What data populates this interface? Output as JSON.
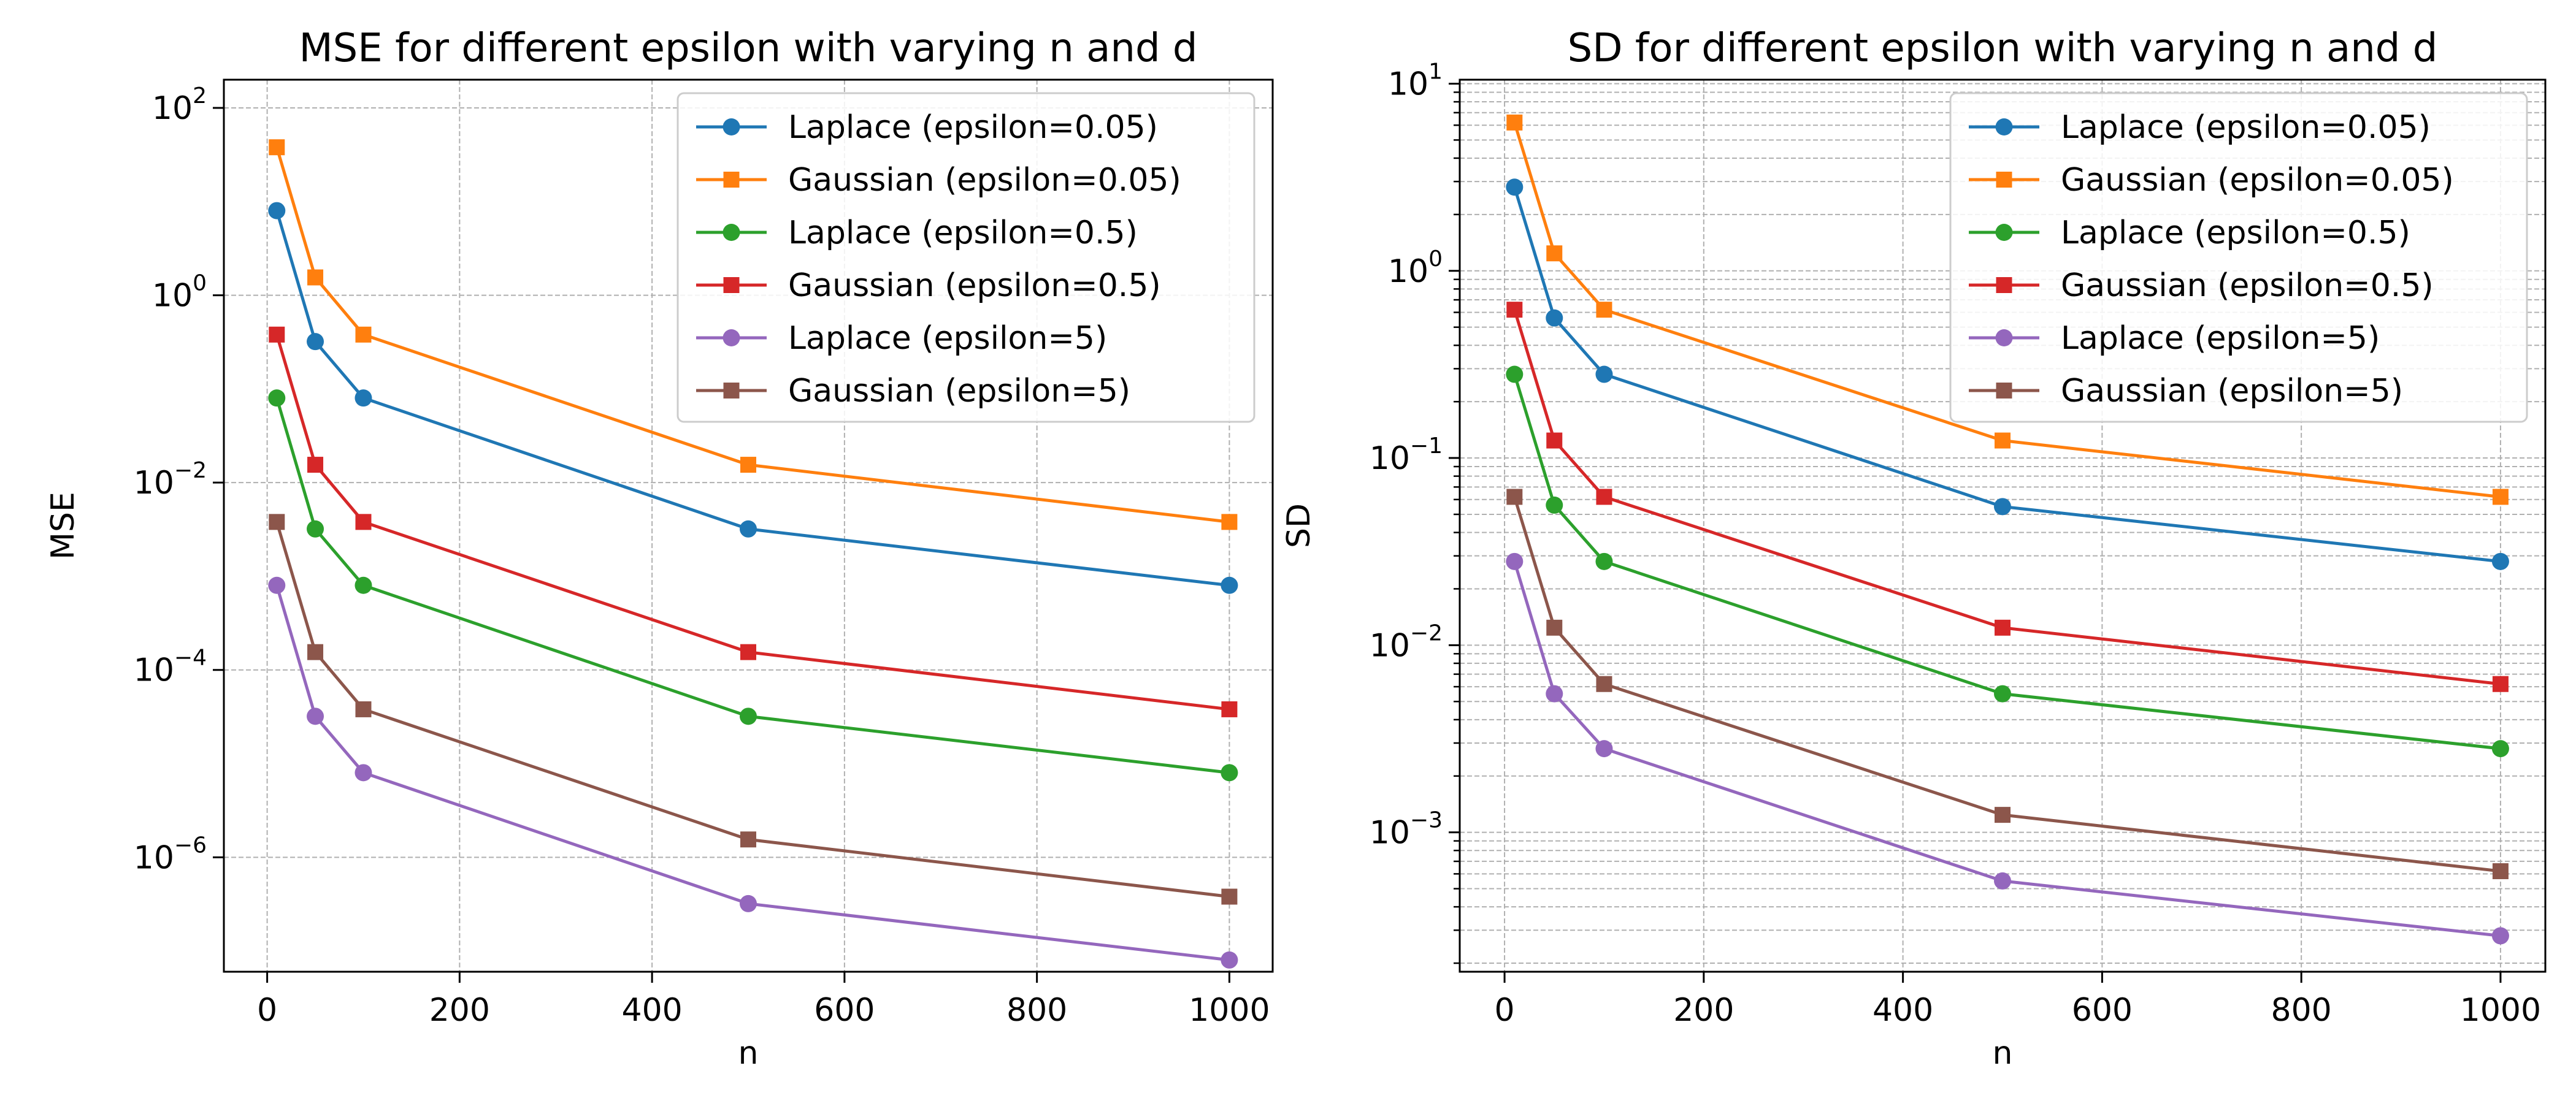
{
  "chart_data": [
    {
      "type": "line",
      "title": "MSE for different epsilon with varying n and d",
      "xlabel": "n",
      "ylabel": "MSE",
      "yscale": "log",
      "xlim": [
        -45,
        1045
      ],
      "ylim": [
        6e-08,
        200
      ],
      "xticks": [
        0,
        200,
        400,
        600,
        800,
        1000
      ],
      "xtick_labels": [
        "0",
        "200",
        "400",
        "600",
        "800",
        "1000"
      ],
      "yticks": [
        1e-06,
        0.0001,
        0.01,
        1,
        100
      ],
      "ytick_labels": [
        {
          "base": "10",
          "exp": "−6"
        },
        {
          "base": "10",
          "exp": "−4"
        },
        {
          "base": "10",
          "exp": "−2"
        },
        {
          "base": "10",
          "exp": "0"
        },
        {
          "base": "10",
          "exp": "2"
        }
      ],
      "grid": true,
      "legend_position": "upper right",
      "x": [
        10,
        50,
        100,
        500,
        1000
      ],
      "series": [
        {
          "name": "Laplace (epsilon=0.05)",
          "color": "#1f77b4",
          "marker": "circle",
          "values": [
            8.0,
            0.32,
            0.08,
            0.0032,
            0.0008
          ]
        },
        {
          "name": "Gaussian (epsilon=0.05)",
          "color": "#ff7f0e",
          "marker": "square",
          "values": [
            38.0,
            1.55,
            0.38,
            0.0155,
            0.0038
          ]
        },
        {
          "name": "Laplace (epsilon=0.5)",
          "color": "#2ca02c",
          "marker": "circle",
          "values": [
            0.08,
            0.0032,
            0.0008,
            3.2e-05,
            8e-06
          ]
        },
        {
          "name": "Gaussian (epsilon=0.5)",
          "color": "#d62728",
          "marker": "square",
          "values": [
            0.38,
            0.0155,
            0.0038,
            0.000155,
            3.8e-05
          ]
        },
        {
          "name": "Laplace (epsilon=5)",
          "color": "#9467bd",
          "marker": "circle",
          "values": [
            0.0008,
            3.2e-05,
            8e-06,
            3.2e-07,
            8e-08
          ]
        },
        {
          "name": "Gaussian (epsilon=5)",
          "color": "#8c564b",
          "marker": "square",
          "values": [
            0.0038,
            0.000155,
            3.8e-05,
            1.55e-06,
            3.8e-07
          ]
        }
      ]
    },
    {
      "type": "line",
      "title": "SD for different epsilon with varying n and d",
      "xlabel": "n",
      "ylabel": "SD",
      "yscale": "log",
      "xlim": [
        -45,
        1045
      ],
      "ylim": [
        0.00018,
        10.5
      ],
      "xticks": [
        0,
        200,
        400,
        600,
        800,
        1000
      ],
      "xtick_labels": [
        "0",
        "200",
        "400",
        "600",
        "800",
        "1000"
      ],
      "yticks": [
        0.001,
        0.01,
        0.1,
        1,
        10
      ],
      "ytick_labels": [
        {
          "base": "10",
          "exp": "−3"
        },
        {
          "base": "10",
          "exp": "−2"
        },
        {
          "base": "10",
          "exp": "−1"
        },
        {
          "base": "10",
          "exp": "0"
        },
        {
          "base": "10",
          "exp": "1"
        }
      ],
      "grid": true,
      "minor_grid": true,
      "legend_position": "upper right",
      "x": [
        10,
        50,
        100,
        500,
        1000
      ],
      "series": [
        {
          "name": "Laplace (epsilon=0.05)",
          "color": "#1f77b4",
          "marker": "circle",
          "values": [
            2.8,
            0.56,
            0.28,
            0.055,
            0.028
          ]
        },
        {
          "name": "Gaussian (epsilon=0.05)",
          "color": "#ff7f0e",
          "marker": "square",
          "values": [
            6.2,
            1.24,
            0.62,
            0.124,
            0.062
          ]
        },
        {
          "name": "Laplace (epsilon=0.5)",
          "color": "#2ca02c",
          "marker": "circle",
          "values": [
            0.28,
            0.056,
            0.028,
            0.0055,
            0.0028
          ]
        },
        {
          "name": "Gaussian (epsilon=0.5)",
          "color": "#d62728",
          "marker": "square",
          "values": [
            0.62,
            0.124,
            0.062,
            0.0124,
            0.0062
          ]
        },
        {
          "name": "Laplace (epsilon=5)",
          "color": "#9467bd",
          "marker": "circle",
          "values": [
            0.028,
            0.0055,
            0.0028,
            0.00055,
            0.00028
          ]
        },
        {
          "name": "Gaussian (epsilon=5)",
          "color": "#8c564b",
          "marker": "square",
          "values": [
            0.062,
            0.0124,
            0.0062,
            0.00124,
            0.00062
          ]
        }
      ]
    }
  ]
}
